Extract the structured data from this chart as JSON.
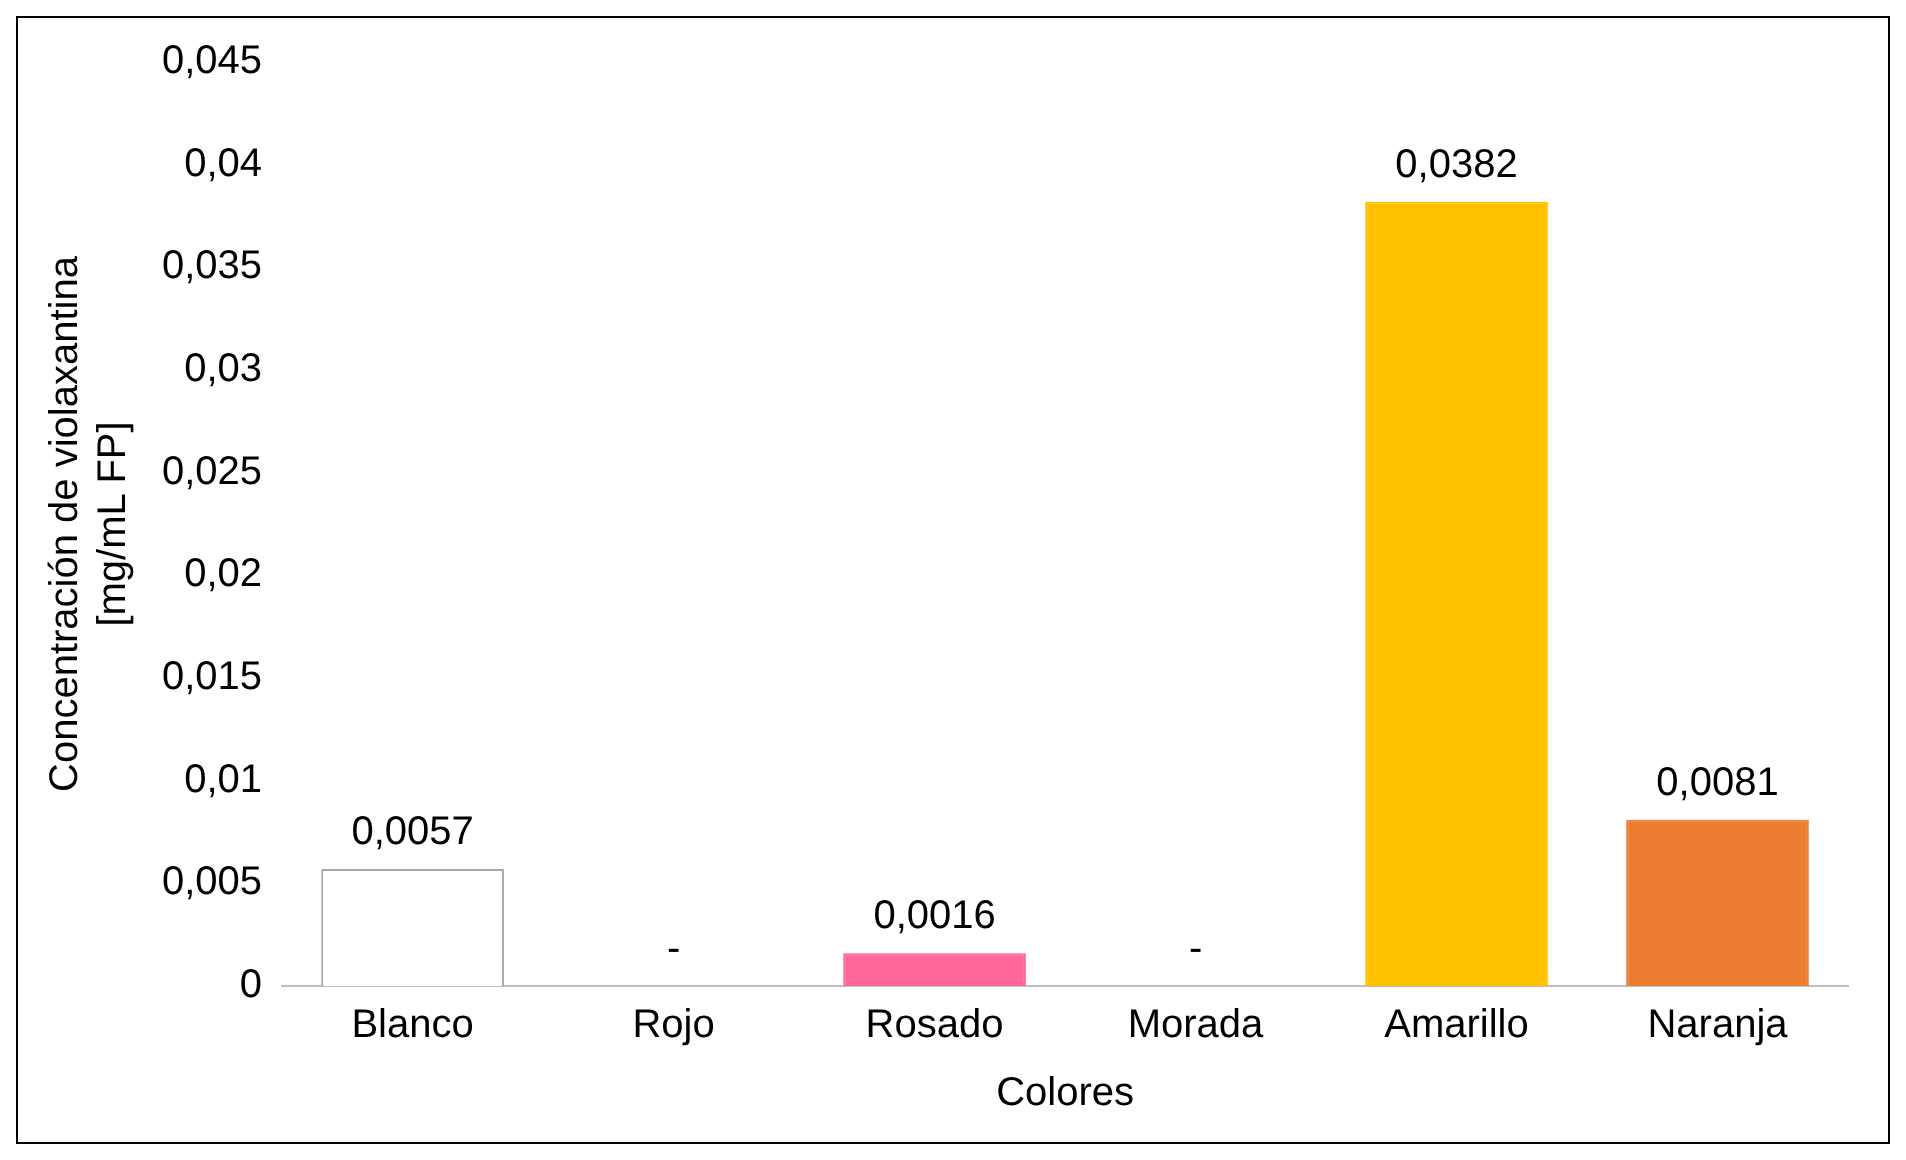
{
  "chart_data": {
    "type": "bar",
    "xlabel": "Colores",
    "ylabel": "Concentración de violaxantina\n[mg/mL FP]",
    "categories": [
      "Blanco",
      "Rojo",
      "Rosado",
      "Morada",
      "Amarillo",
      "Naranja"
    ],
    "values": [
      0.0057,
      null,
      0.0016,
      null,
      0.0382,
      0.0081
    ],
    "value_labels": [
      "0,0057",
      "-",
      "0,0016",
      "-",
      "0,0382",
      "0,0081"
    ],
    "colors": [
      "#ffffff",
      "#ff0000",
      "#ff6699",
      "#7030a0",
      "#ffc000",
      "#ed7d31"
    ],
    "ylim": [
      0,
      0.045
    ],
    "yticks": [
      0,
      {
        "value": 0.005,
        "label": "0,005"
      },
      {
        "value": 0.01,
        "label": "0,01"
      },
      {
        "value": 0.015,
        "label": "0,015"
      },
      {
        "value": 0.02,
        "label": "0,02"
      },
      {
        "value": 0.025,
        "label": "0,025"
      },
      {
        "value": 0.03,
        "label": "0,03"
      },
      {
        "value": 0.035,
        "label": "0,035"
      },
      {
        "value": 0.04,
        "label": "0,04"
      },
      {
        "value": 0.045,
        "label": "0,045"
      }
    ],
    "grid": false,
    "legend": false
  }
}
